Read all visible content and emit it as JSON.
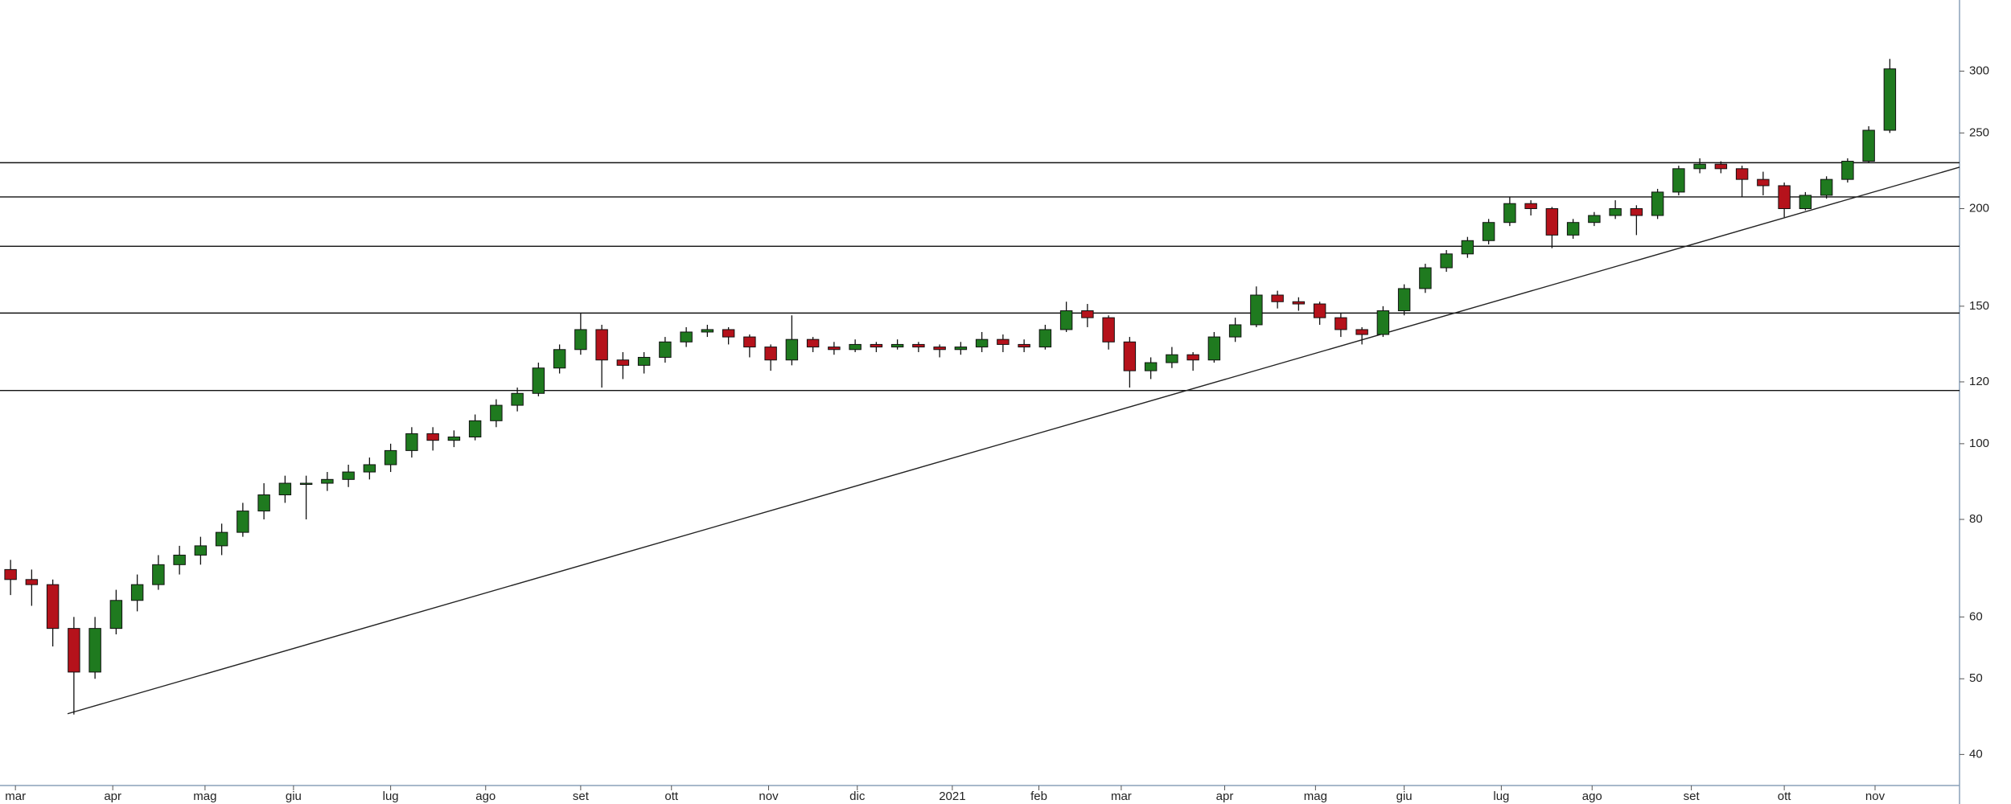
{
  "chart_data": {
    "type": "candlestick",
    "ylim": [
      36.5,
      370
    ],
    "log_scale": true,
    "yticks": [
      40,
      50,
      60,
      80,
      100,
      120,
      150,
      200,
      250,
      300
    ],
    "xlim": [
      0,
      92.8
    ],
    "xticks": [
      {
        "value": 0.73,
        "label": "mar"
      },
      {
        "value": 5.34,
        "label": "apr"
      },
      {
        "value": 9.71,
        "label": "mag"
      },
      {
        "value": 13.9,
        "label": "giu"
      },
      {
        "value": 18.5,
        "label": "lug"
      },
      {
        "value": 23.0,
        "label": "ago"
      },
      {
        "value": 27.5,
        "label": "set"
      },
      {
        "value": 31.8,
        "label": "ott"
      },
      {
        "value": 36.4,
        "label": "nov"
      },
      {
        "value": 40.6,
        "label": "dic"
      },
      {
        "value": 45.1,
        "label": "2021"
      },
      {
        "value": 49.2,
        "label": "feb"
      },
      {
        "value": 53.1,
        "label": "mar"
      },
      {
        "value": 58.0,
        "label": "apr"
      },
      {
        "value": 62.3,
        "label": "mag"
      },
      {
        "value": 66.5,
        "label": "giu"
      },
      {
        "value": 71.1,
        "label": "lug"
      },
      {
        "value": 75.4,
        "label": "ago"
      },
      {
        "value": 80.1,
        "label": "set"
      },
      {
        "value": 84.5,
        "label": "ott"
      },
      {
        "value": 88.8,
        "label": "nov"
      }
    ],
    "up_color": "#1f7a1f",
    "down_color": "#b5121b",
    "candles": [
      [
        69,
        71,
        64,
        67
      ],
      [
        67,
        69,
        62,
        66
      ],
      [
        66,
        67,
        55,
        58
      ],
      [
        58,
        60,
        45,
        51
      ],
      [
        51,
        60,
        50,
        58
      ],
      [
        58,
        65,
        57,
        63
      ],
      [
        63,
        68,
        61,
        66
      ],
      [
        66,
        72,
        65,
        70
      ],
      [
        70,
        74,
        68,
        72
      ],
      [
        72,
        76,
        70,
        74
      ],
      [
        74,
        79,
        72,
        77
      ],
      [
        77,
        84,
        76,
        82
      ],
      [
        82,
        89,
        80,
        86
      ],
      [
        86,
        91,
        84,
        89
      ],
      [
        89,
        91,
        80,
        89
      ],
      [
        89,
        92,
        87,
        90
      ],
      [
        90,
        94,
        88,
        92
      ],
      [
        92,
        96,
        90,
        94
      ],
      [
        94,
        100,
        92,
        98
      ],
      [
        98,
        105,
        96,
        103
      ],
      [
        103,
        105,
        98,
        101
      ],
      [
        101,
        104,
        99,
        102
      ],
      [
        102,
        109,
        101,
        107
      ],
      [
        107,
        114,
        105,
        112
      ],
      [
        112,
        118,
        110,
        116
      ],
      [
        116,
        127,
        115,
        125
      ],
      [
        125,
        134,
        123,
        132
      ],
      [
        132,
        147,
        130,
        140
      ],
      [
        140,
        142,
        118,
        128
      ],
      [
        128,
        131,
        121,
        126
      ],
      [
        126,
        131,
        123,
        129
      ],
      [
        129,
        137,
        127,
        135
      ],
      [
        135,
        141,
        133,
        139
      ],
      [
        139,
        142,
        137,
        140
      ],
      [
        140,
        141,
        134,
        137
      ],
      [
        137,
        138,
        129,
        133
      ],
      [
        133,
        134,
        124,
        128
      ],
      [
        128,
        146,
        126,
        136
      ],
      [
        136,
        137,
        131,
        133
      ],
      [
        133,
        135,
        130,
        132
      ],
      [
        132,
        136,
        131,
        134
      ],
      [
        134,
        135,
        131,
        133
      ],
      [
        133,
        136,
        132,
        134
      ],
      [
        134,
        135,
        131,
        133
      ],
      [
        133,
        134,
        129,
        132
      ],
      [
        132,
        135,
        130,
        133
      ],
      [
        133,
        139,
        131,
        136
      ],
      [
        136,
        138,
        131,
        134
      ],
      [
        134,
        136,
        131,
        133
      ],
      [
        133,
        142,
        132,
        140
      ],
      [
        140,
        152,
        139,
        148
      ],
      [
        148,
        151,
        141,
        145
      ],
      [
        145,
        146,
        132,
        135
      ],
      [
        135,
        137,
        118,
        124
      ],
      [
        124,
        129,
        121,
        127
      ],
      [
        127,
        133,
        125,
        130
      ],
      [
        130,
        131,
        124,
        128
      ],
      [
        128,
        139,
        127,
        137
      ],
      [
        137,
        145,
        135,
        142
      ],
      [
        142,
        159,
        141,
        155
      ],
      [
        155,
        157,
        149,
        152
      ],
      [
        152,
        154,
        148,
        151
      ],
      [
        151,
        152,
        142,
        145
      ],
      [
        145,
        147,
        137,
        140
      ],
      [
        140,
        141,
        134,
        138
      ],
      [
        138,
        150,
        137,
        148
      ],
      [
        148,
        160,
        146,
        158
      ],
      [
        158,
        170,
        156,
        168
      ],
      [
        168,
        177,
        166,
        175
      ],
      [
        175,
        184,
        173,
        182
      ],
      [
        182,
        194,
        180,
        192
      ],
      [
        192,
        207,
        190,
        203
      ],
      [
        203,
        205,
        196,
        200
      ],
      [
        200,
        201,
        178,
        185
      ],
      [
        185,
        194,
        183,
        192
      ],
      [
        192,
        198,
        190,
        196
      ],
      [
        196,
        205,
        194,
        200
      ],
      [
        200,
        202,
        185,
        196
      ],
      [
        196,
        212,
        194,
        210
      ],
      [
        210,
        227,
        208,
        225
      ],
      [
        225,
        232,
        222,
        228
      ],
      [
        228,
        230,
        222,
        225
      ],
      [
        225,
        227,
        207,
        218
      ],
      [
        218,
        223,
        208,
        214
      ],
      [
        214,
        216,
        195,
        200
      ],
      [
        200,
        210,
        199,
        208
      ],
      [
        208,
        220,
        206,
        218
      ],
      [
        218,
        232,
        216,
        230
      ],
      [
        230,
        255,
        229,
        252
      ],
      [
        252,
        311,
        250,
        302
      ]
    ],
    "horizontal_lines": [
      229,
      207,
      179,
      147,
      117
    ],
    "trendline": {
      "x": [
        3.2,
        92.8
      ],
      "values": [
        45.1,
        226
      ]
    }
  }
}
